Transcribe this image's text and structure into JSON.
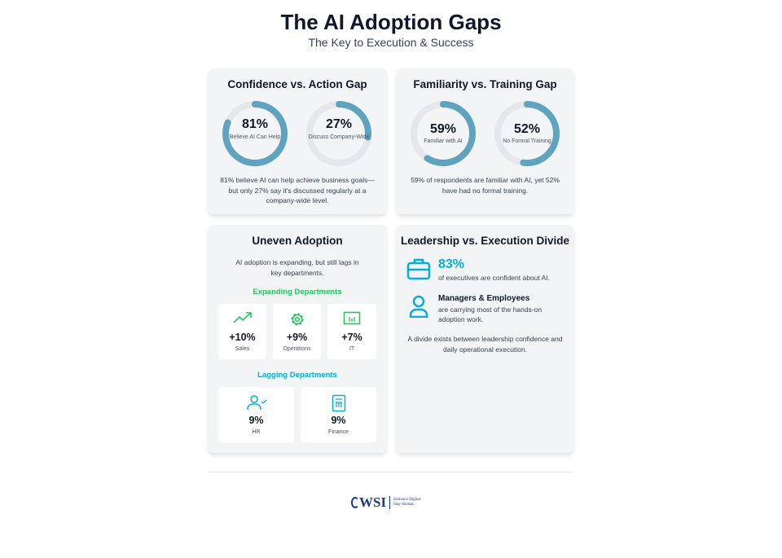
{
  "header": {
    "title": "The AI Adoption Gaps",
    "subtitle": "The Key to Execution & Success"
  },
  "colors": {
    "ring": "#5fa3bf",
    "track": "#e5e7eb",
    "green": "#22c55e",
    "cyan": "#06aed4"
  },
  "confidence": {
    "title": "Confidence vs. Action Gap",
    "donuts": [
      {
        "value": "81%",
        "percent": 81,
        "label": "Believe AI Can Help"
      },
      {
        "value": "27%",
        "percent": 27,
        "label": "Discuss Company-Wide"
      }
    ],
    "description": "81% believe AI can help achieve business goals—but only 27% say it's discussed regularly at a company-wide level."
  },
  "familiarity": {
    "title": "Familiarity vs. Training Gap",
    "donuts": [
      {
        "value": "59%",
        "percent": 59,
        "label": "Familiar with AI"
      },
      {
        "value": "52%",
        "percent": 52,
        "label": "No Formal Training"
      }
    ],
    "description": "59% of respondents are familiar with AI, yet 52% have had no formal training."
  },
  "adoption": {
    "title": "Uneven Adoption",
    "description": "AI adoption is expanding, but still lags in key departments.",
    "expanding_title": "Expanding Departments",
    "expanding": [
      {
        "icon": "trending-up-icon",
        "value": "+10%",
        "name": "Sales"
      },
      {
        "icon": "gear-icon",
        "value": "+9%",
        "name": "Operations"
      },
      {
        "icon": "monitor-icon",
        "value": "+7%",
        "name": "IT"
      }
    ],
    "lagging_title": "Lagging Departments",
    "lagging": [
      {
        "icon": "user-check-icon",
        "value": "9%",
        "name": "HR"
      },
      {
        "icon": "calculator-icon",
        "value": "9%",
        "name": "Finance"
      }
    ]
  },
  "leadership": {
    "title": "Leadership vs. Execution Divide",
    "stat_value": "83%",
    "stat_text": "of executives are confident about AI.",
    "group_title": "Managers & Employees",
    "group_text": "are carrying most of the hands-on adoption work.",
    "description": "A divide exists between leadership confidence and daily operational execution."
  },
  "footer": {
    "logo_text": "WSI",
    "tagline_1": "Embrace Digital.",
    "tagline_2": "Stay Human."
  }
}
